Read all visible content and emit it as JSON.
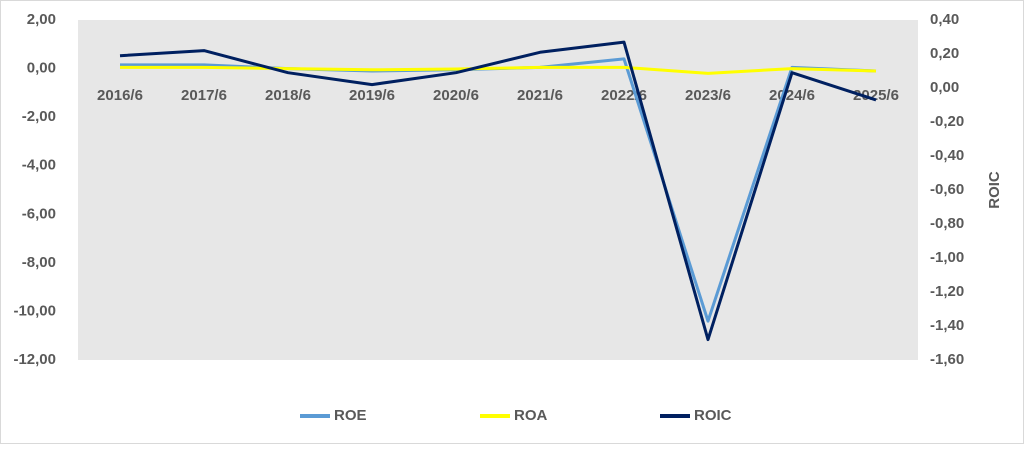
{
  "chart_data": {
    "type": "line",
    "categories": [
      "2016/6",
      "2017/6",
      "2018/6",
      "2019/6",
      "2020/6",
      "2021/6",
      "2022/6",
      "2023/6",
      "2024/6",
      "2025/6"
    ],
    "series": [
      {
        "name": "ROE",
        "color": "#5b9bd5",
        "values": [
          0.15,
          0.15,
          0.0,
          -0.1,
          -0.05,
          0.05,
          0.4,
          -10.4,
          0.05,
          -0.1
        ]
      },
      {
        "name": "ROA",
        "color": "#ffff00",
        "values": [
          0.05,
          0.05,
          0.0,
          -0.05,
          -0.02,
          0.05,
          0.05,
          -0.2,
          0.0,
          -0.1
        ]
      },
      {
        "name": "ROIC",
        "color": "#002060",
        "axis": "y2",
        "values": [
          0.19,
          0.22,
          0.09,
          0.02,
          0.09,
          0.21,
          0.27,
          -1.48,
          0.09,
          -0.07
        ]
      }
    ],
    "ylim": [
      -12,
      2
    ],
    "yticks": [
      {
        "value": 2,
        "label": "2,00"
      },
      {
        "value": 0,
        "label": "0,00"
      },
      {
        "value": -2,
        "label": "-2,00"
      },
      {
        "value": -4,
        "label": "-4,00"
      },
      {
        "value": -6,
        "label": "-6,00"
      },
      {
        "value": -8,
        "label": "-8,00"
      },
      {
        "value": -10,
        "label": "-10,00"
      },
      {
        "value": -12,
        "label": "-12,00"
      }
    ],
    "y2lim": [
      -1.6,
      0.4
    ],
    "y2ticks": [
      {
        "value": 0.4,
        "label": "0,40"
      },
      {
        "value": 0.2,
        "label": "0,20"
      },
      {
        "value": 0,
        "label": "0,00"
      },
      {
        "value": -0.2,
        "label": "-0,20"
      },
      {
        "value": -0.4,
        "label": "-0,40"
      },
      {
        "value": -0.6,
        "label": "-0,60"
      },
      {
        "value": -0.8,
        "label": "-0,80"
      },
      {
        "value": -1.0,
        "label": "-1,00"
      },
      {
        "value": -1.2,
        "label": "-1,20"
      },
      {
        "value": -1.4,
        "label": "-1,40"
      },
      {
        "value": -1.6,
        "label": "-1,60"
      }
    ],
    "y2label": "ROIC",
    "legend": "bottom"
  }
}
